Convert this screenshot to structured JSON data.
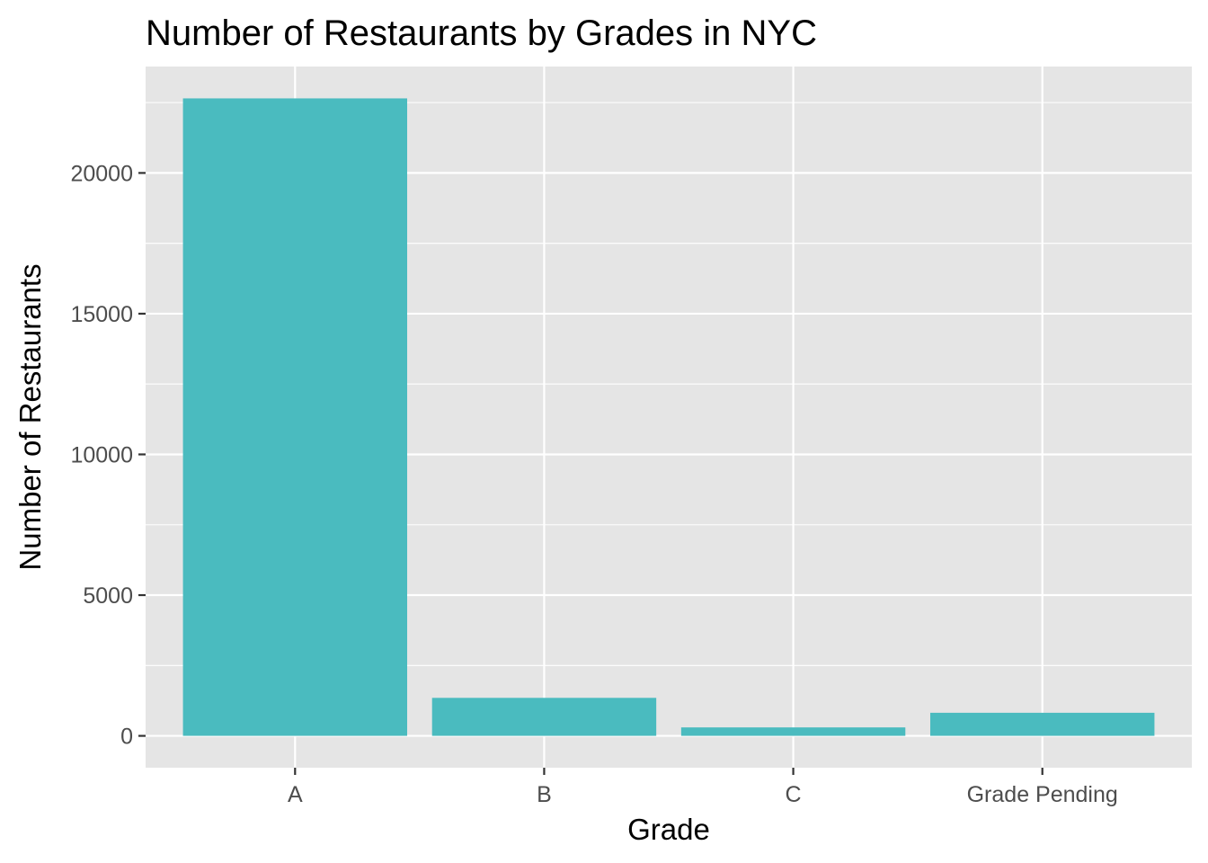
{
  "chart_data": {
    "type": "bar",
    "title": "Number of Restaurants by Grades in NYC",
    "xlabel": "Grade",
    "ylabel": "Number of Restaurants",
    "categories": [
      "A",
      "B",
      "C",
      "Grade Pending"
    ],
    "values": [
      22650,
      1350,
      300,
      820
    ],
    "ylim": [
      -1132,
      23782
    ],
    "yticks": [
      0,
      5000,
      10000,
      15000,
      20000
    ],
    "ytick_labels": [
      "0",
      "5000",
      "10000",
      "15000",
      "20000"
    ],
    "grid": true,
    "legend": "none",
    "colors": {
      "bar": "#4ABBBF",
      "panel": "#E5E5E5",
      "grid": "#FFFFFF",
      "tick_text": "#4D4D4D",
      "tick_mark": "#333333",
      "text": "#000000"
    }
  }
}
